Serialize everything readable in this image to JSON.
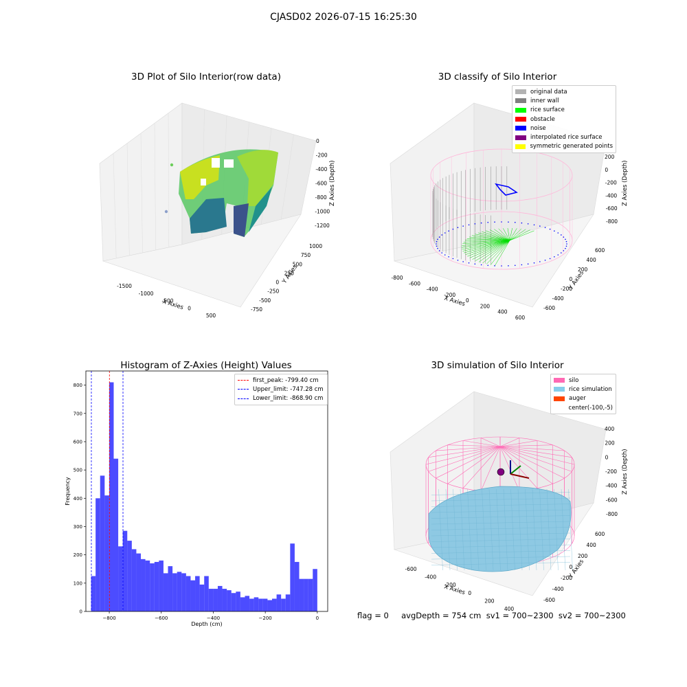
{
  "suptitle": "CJASD02 2026-07-15 16:25:30",
  "status_text": "flag = 0     avgDepth = 754 cm  sv1 = 700~2300  sv2 = 700~2300",
  "chart_data": [
    {
      "type": "scatter3d",
      "title": "3D Plot of Silo Interior(row data)",
      "xlabel": "X Axies",
      "ylabel": "Y Axies",
      "zlabel": "Z Axies (Depth)",
      "x_ticks": [
        "-1500",
        "-1000",
        "-500",
        "0",
        "500"
      ],
      "y_ticks": [
        "-750",
        "-500",
        "-250",
        "0",
        "250",
        "500",
        "750",
        "1000"
      ],
      "z_ticks": [
        "0",
        "-200",
        "-400",
        "-600",
        "-800",
        "-1000",
        "-1200"
      ],
      "colormap": "viridis"
    },
    {
      "type": "scatter3d",
      "title": "3D classify of Silo Interior",
      "xlabel": "X Axies",
      "ylabel": "Y Axies",
      "zlabel": "Z Axies (Depth)",
      "x_ticks": [
        "-800",
        "-600",
        "-400",
        "-200",
        "0",
        "200",
        "400",
        "600"
      ],
      "y_ticks": [
        "-600",
        "-400",
        "-200",
        "0",
        "200",
        "400",
        "600"
      ],
      "z_ticks": [
        "200",
        "0",
        "-200",
        "-400",
        "-600",
        "-800"
      ],
      "legend_position": "top-right",
      "legend": [
        {
          "label": "original data",
          "color": "#b3b3b3"
        },
        {
          "label": "inner wall",
          "color": "#808080"
        },
        {
          "label": "rice surface",
          "color": "#00ff00"
        },
        {
          "label": "obstacle",
          "color": "#ff0000"
        },
        {
          "label": "noise",
          "color": "#0000ff"
        },
        {
          "label": "interpolated rice surface",
          "color": "#800080"
        },
        {
          "label": "symmetric generated points",
          "color": "#ffff00"
        }
      ]
    },
    {
      "type": "bar",
      "title": "Histogram of Z-Axies (Height) Values",
      "xlabel": "Depth (cm)",
      "ylabel": "Frequency",
      "xlim": [
        -890,
        40
      ],
      "ylim": [
        0,
        850
      ],
      "x_ticks": [
        -800,
        -600,
        -400,
        -200,
        0
      ],
      "y_ticks": [
        0,
        100,
        200,
        300,
        400,
        500,
        600,
        700,
        800
      ],
      "bar_color": "#0000ff",
      "bin_start": -870,
      "bin_width": 17.4,
      "values": [
        125,
        400,
        480,
        410,
        810,
        540,
        230,
        285,
        250,
        220,
        205,
        185,
        180,
        170,
        175,
        180,
        135,
        160,
        135,
        140,
        135,
        125,
        110,
        125,
        95,
        125,
        80,
        80,
        90,
        80,
        75,
        65,
        70,
        50,
        55,
        45,
        50,
        45,
        45,
        40,
        45,
        60,
        45,
        60,
        240,
        175,
        115,
        115,
        115,
        150
      ],
      "vlines": [
        {
          "x": -799.4,
          "color": "#ff0000",
          "label": "first_peak: -799.40 cm"
        },
        {
          "x": -747.28,
          "color": "#0000ff",
          "label": "Upper_limit: -747.28 cm"
        },
        {
          "x": -868.9,
          "color": "#0000ff",
          "label": "Lower_limit: -868.90 cm"
        }
      ],
      "legend_position": "top-right"
    },
    {
      "type": "surface3d",
      "title": "3D simulation of Silo Interior",
      "xlabel": "X Axies",
      "ylabel": "Y Axies",
      "zlabel": "Z Axies (Depth)",
      "x_ticks": [
        "-600",
        "-400",
        "-200",
        "0",
        "200",
        "400"
      ],
      "y_ticks": [
        "-600",
        "-400",
        "-200",
        "0",
        "200",
        "400",
        "600"
      ],
      "z_ticks": [
        "400",
        "200",
        "0",
        "-200",
        "-400",
        "-600",
        "-800"
      ],
      "legend_position": "top-right",
      "legend": [
        {
          "label": "silo",
          "color": "#ff69b4"
        },
        {
          "label": "rice simulation",
          "color": "#87ceeb"
        },
        {
          "label": "auger",
          "color": "#ff4500"
        },
        {
          "label": "center(-100,-5)",
          "color": ""
        }
      ]
    }
  ]
}
